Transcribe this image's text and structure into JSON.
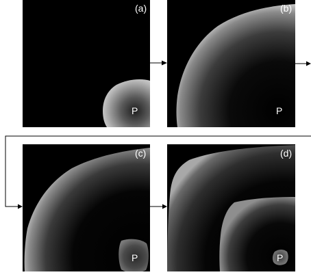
{
  "panels": [
    {
      "label": "(a)",
      "point_label": "P"
    },
    {
      "label": "(b)",
      "point_label": "P"
    },
    {
      "label": "(c)",
      "point_label": "P"
    },
    {
      "label": "(d)",
      "point_label": "P"
    }
  ],
  "colors": {
    "background": "#000000",
    "front_bright": "#e6e6e6",
    "front_dark": "#000000",
    "text": "#ffffff",
    "connector": "#000000"
  }
}
